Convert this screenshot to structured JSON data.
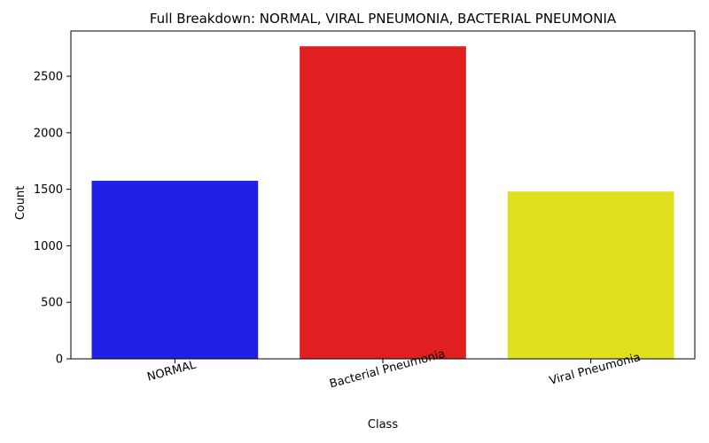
{
  "chart_data": {
    "type": "bar",
    "title": "Full Breakdown: NORMAL, VIRAL PNEUMONIA, BACTERIAL PNEUMONIA",
    "xlabel": "Class",
    "ylabel": "Count",
    "categories": [
      "NORMAL",
      "Bacterial Pneumonia",
      "Viral Pneumonia"
    ],
    "values": [
      1575,
      2765,
      1480
    ],
    "colors": [
      "#1f1fe6",
      "#e02020",
      "#e0e020"
    ],
    "ylim": [
      0,
      2900
    ],
    "yticks": [
      0,
      500,
      1000,
      1500,
      2000,
      2500
    ],
    "grid": false
  }
}
